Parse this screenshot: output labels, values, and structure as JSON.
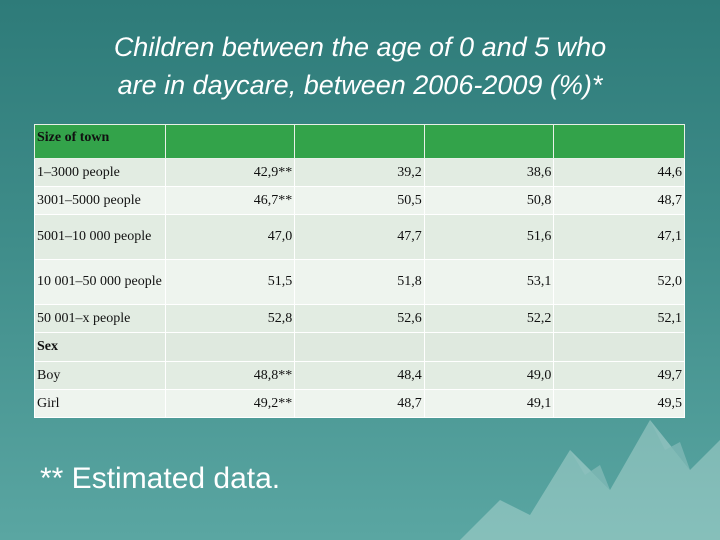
{
  "title": {
    "line1": "Children between the age of  0 and 5 who",
    "line2": "are in daycare, between 2006-2009 (%)*"
  },
  "table": {
    "header_label": "Size of town",
    "town_rows": [
      {
        "label": "1–3000 people",
        "values": [
          "42,9**",
          "39,2",
          "38,6",
          "44,6"
        ]
      },
      {
        "label": "3001–5000 people",
        "values": [
          "46,7**",
          "50,5",
          "50,8",
          "48,7"
        ]
      },
      {
        "label": "5001–10 000 people",
        "values": [
          "47,0",
          "47,7",
          "51,6",
          "47,1"
        ]
      },
      {
        "label": "10 001–50 000 people",
        "values": [
          "51,5",
          "51,8",
          "53,1",
          "52,0"
        ]
      },
      {
        "label": "50 001–x people",
        "values": [
          "52,8",
          "52,6",
          "52,2",
          "52,1"
        ]
      }
    ],
    "sex_label": "Sex",
    "sex_rows": [
      {
        "label": "Boy",
        "values": [
          "48,8**",
          "48,4",
          "49,0",
          "49,7"
        ]
      },
      {
        "label": "Girl",
        "values": [
          "49,2**",
          "48,7",
          "49,1",
          "49,5"
        ]
      }
    ]
  },
  "footnote": "** Estimated data.",
  "colors": {
    "background": "#3f8d8a",
    "header": "#33a34a",
    "row": "#e2ece2"
  }
}
